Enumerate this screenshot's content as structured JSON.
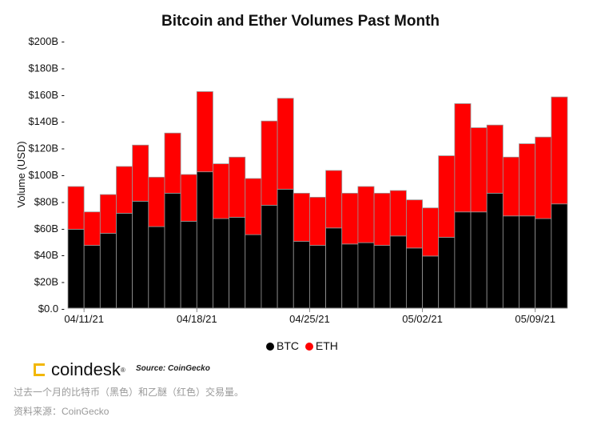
{
  "chart_data": {
    "type": "bar",
    "stacked": true,
    "title": "Bitcoin and Ether Volumes Past Month",
    "ylabel": "Volume (USD)",
    "xlabel": "",
    "ylim": [
      0,
      200
    ],
    "yticks": [
      "$0.0",
      "$20B",
      "$40B",
      "$60B",
      "$80B",
      "$100B",
      "$120B",
      "$140B",
      "$160B",
      "$180B",
      "$200B"
    ],
    "xtick_labels": [
      {
        "index": 1,
        "label": "04/11/21"
      },
      {
        "index": 8,
        "label": "04/18/21"
      },
      {
        "index": 15,
        "label": "04/25/21"
      },
      {
        "index": 22,
        "label": "05/02/21"
      },
      {
        "index": 29,
        "label": "05/09/21"
      }
    ],
    "series": [
      {
        "name": "BTC",
        "color": "#000000",
        "values": [
          59,
          47,
          56,
          71,
          80,
          61,
          86,
          65,
          102,
          67,
          68,
          55,
          77,
          89,
          50,
          47,
          60,
          48,
          49,
          47,
          54,
          45,
          39,
          53,
          72,
          72,
          86,
          69,
          69,
          67,
          78
        ]
      },
      {
        "name": "ETH",
        "color": "#ff0000",
        "values": [
          32,
          25,
          29,
          35,
          42,
          37,
          45,
          35,
          60,
          41,
          45,
          42,
          63,
          68,
          36,
          36,
          43,
          38,
          42,
          39,
          34,
          36,
          36,
          61,
          81,
          63,
          51,
          44,
          54,
          61,
          80
        ]
      }
    ],
    "legend": "bottom-center",
    "grid": false
  },
  "branding": {
    "logo": "coindesk",
    "source": "Source: CoinGecko"
  },
  "caption": {
    "line1": "过去一个月的比特币（黑色）和乙醚（红色）交易量。",
    "line2": "资料来源：CoinGecko"
  }
}
